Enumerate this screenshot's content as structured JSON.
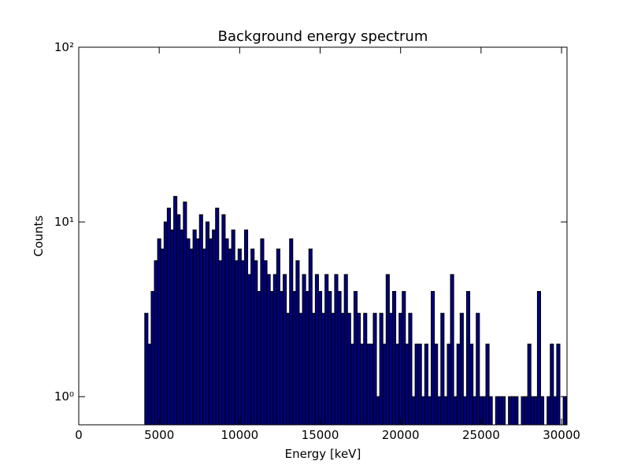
{
  "chart_data": {
    "type": "histogram",
    "title": "Background energy spectrum",
    "xlabel": "Energy [keV]",
    "ylabel": "Counts",
    "color": "#000080",
    "edgecolor": "#000000",
    "yscale": "log",
    "xlim": [
      0,
      30340
    ],
    "ylim": [
      0.69,
      100
    ],
    "xticks": [
      0,
      5000,
      10000,
      15000,
      20000,
      25000,
      30000
    ],
    "yticks": [
      {
        "value": 1,
        "label": "10⁰"
      },
      {
        "value": 10,
        "label": "10¹"
      },
      {
        "value": 100,
        "label": "10²"
      }
    ],
    "bins": [
      4100,
      4300,
      4500,
      4700,
      4900,
      5100,
      5300,
      5500,
      5700,
      5900,
      6100,
      6300,
      6500,
      6700,
      6900,
      7100,
      7300,
      7500,
      7700,
      7900,
      8100,
      8300,
      8500,
      8700,
      8900,
      9100,
      9300,
      9500,
      9700,
      9900,
      10100,
      10300,
      10500,
      10700,
      10900,
      11100,
      11300,
      11500,
      11700,
      11900,
      12100,
      12300,
      12500,
      12700,
      12900,
      13100,
      13300,
      13500,
      13700,
      13900,
      14100,
      14300,
      14500,
      14700,
      14900,
      15100,
      15300,
      15500,
      15700,
      15900,
      16100,
      16300,
      16500,
      16700,
      16900,
      17100,
      17300,
      17500,
      17700,
      17900,
      18100,
      18300,
      18500,
      18700,
      18900,
      19100,
      19300,
      19500,
      19700,
      19900,
      20100,
      20300,
      20500,
      20700,
      20900,
      21100,
      21300,
      21500,
      21700,
      21900,
      22100,
      22300,
      22500,
      22700,
      22900,
      23100,
      23300,
      23500,
      23700,
      23900,
      24100,
      24300,
      24500,
      24700,
      24900,
      25100,
      25300,
      25500,
      25700,
      25900,
      26100,
      26300,
      26500,
      26700,
      26900,
      27100,
      27300,
      27500,
      27700,
      27900,
      28100,
      28300,
      28500,
      28700,
      28900,
      29100,
      29300,
      29500,
      29700,
      29900,
      30100,
      30300
    ],
    "counts": [
      3,
      2,
      4,
      6,
      8,
      7,
      10,
      12,
      9,
      14,
      11,
      9,
      13,
      8,
      7,
      9,
      8,
      11,
      7,
      10,
      8,
      9,
      12,
      6,
      11,
      8,
      7,
      9,
      6,
      7,
      6,
      9,
      5,
      7,
      6,
      4,
      8,
      6,
      5,
      4,
      5,
      7,
      4,
      5,
      3,
      8,
      4,
      6,
      3,
      5,
      4,
      7,
      3,
      5,
      4,
      3,
      5,
      4,
      3,
      5,
      4,
      3,
      5,
      3,
      2,
      4,
      3,
      2,
      3,
      2,
      2,
      3,
      1,
      3,
      2,
      5,
      3,
      4,
      2,
      3,
      4,
      2,
      3,
      1,
      2,
      2,
      1,
      2,
      1,
      4,
      2,
      1,
      3,
      1,
      2,
      5,
      1,
      2,
      3,
      1,
      4,
      2,
      1,
      3,
      1,
      1,
      2,
      1,
      0,
      1,
      1,
      1,
      0,
      1,
      1,
      1,
      0,
      1,
      1,
      2,
      1,
      1,
      4,
      1,
      0,
      1,
      2,
      1,
      2,
      0,
      1
    ]
  }
}
